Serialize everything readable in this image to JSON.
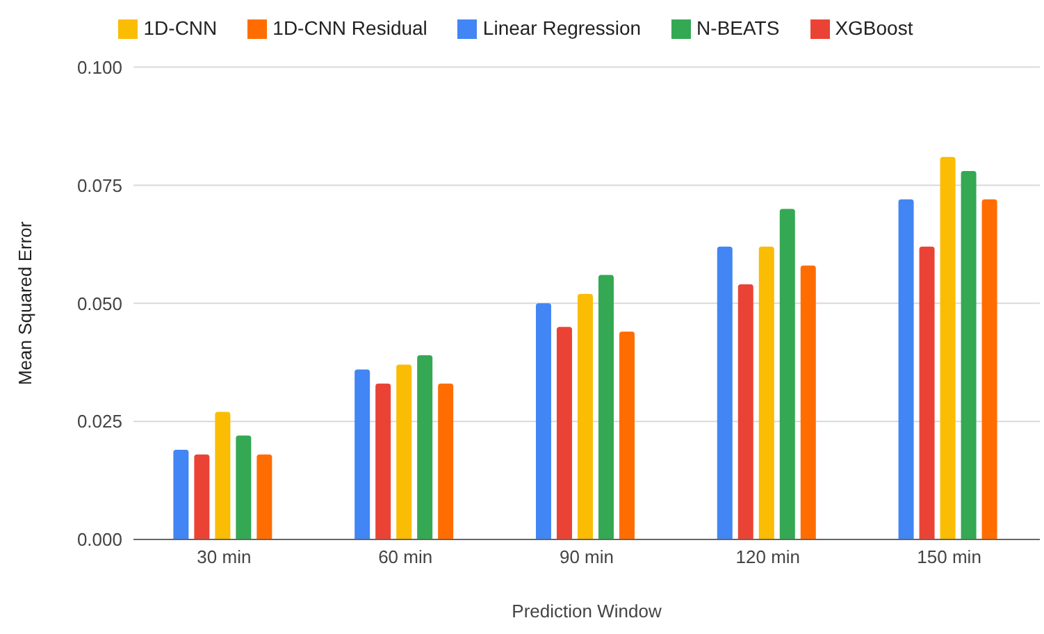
{
  "chart_data": {
    "type": "bar",
    "xlabel": "Prediction Window",
    "ylabel": "Mean Squared Error",
    "categories": [
      "30 min",
      "60 min",
      "90 min",
      "120 min",
      "150 min"
    ],
    "series": [
      {
        "name": "Linear Regression",
        "color": "#4285f4",
        "values": [
          0.019,
          0.036,
          0.05,
          0.062,
          0.072
        ]
      },
      {
        "name": "XGBoost",
        "color": "#ea4335",
        "values": [
          0.018,
          0.033,
          0.045,
          0.054,
          0.062
        ]
      },
      {
        "name": "1D-CNN",
        "color": "#fbbc04",
        "values": [
          0.027,
          0.037,
          0.052,
          0.062,
          0.081
        ]
      },
      {
        "name": "N-BEATS",
        "color": "#34a853",
        "values": [
          0.022,
          0.039,
          0.056,
          0.07,
          0.078
        ]
      },
      {
        "name": "1D-CNN Residual",
        "color": "#ff6d01",
        "values": [
          0.018,
          0.033,
          0.044,
          0.058,
          0.072
        ]
      }
    ],
    "ylim": [
      0,
      0.1
    ],
    "yticks": [
      {
        "value": 0,
        "label": "0.000"
      },
      {
        "value": 0.025,
        "label": "0.025"
      },
      {
        "value": 0.05,
        "label": "0.050"
      },
      {
        "value": 0.075,
        "label": "0.075"
      },
      {
        "value": 0.1,
        "label": "0.100"
      }
    ],
    "grid": "y",
    "legend": "top"
  }
}
